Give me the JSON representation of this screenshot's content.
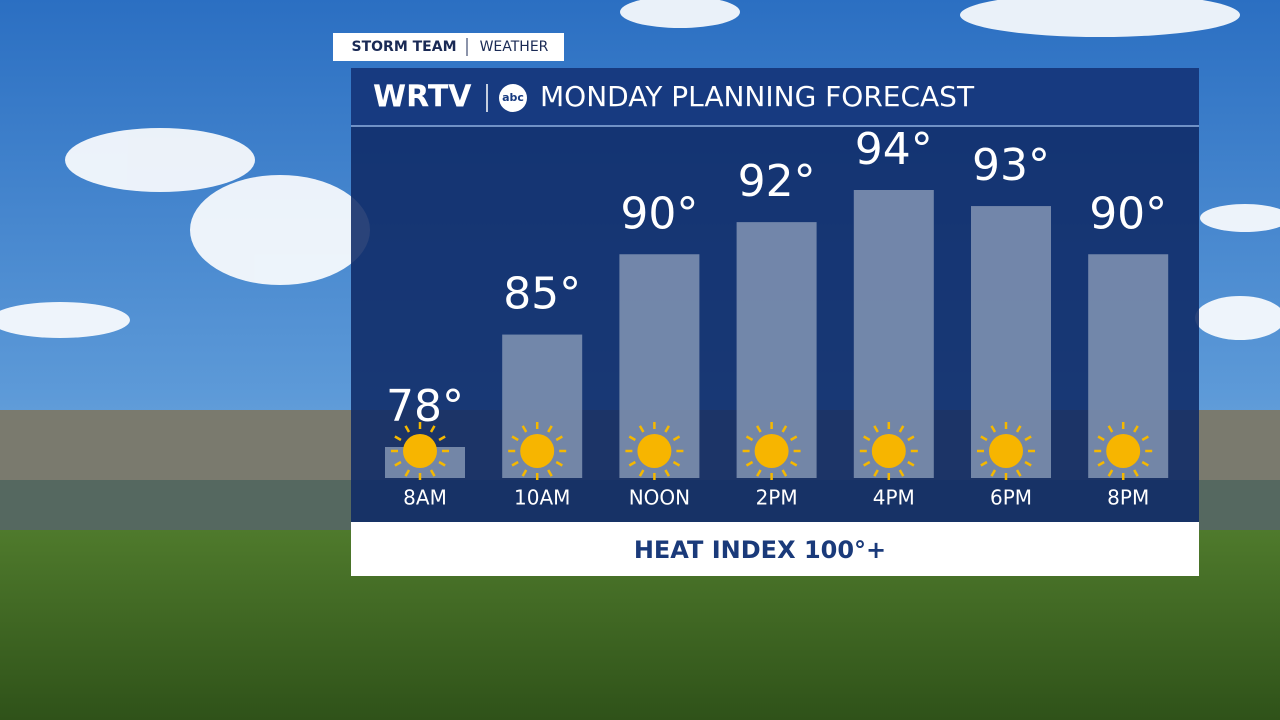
{
  "header": {
    "tab_left": "STORM TEAM",
    "tab_right": "WEATHER",
    "station": "WRTV",
    "network": "abc"
  },
  "chart_data": {
    "type": "bar",
    "title": "MONDAY PLANNING FORECAST",
    "categories": [
      "8AM",
      "10AM",
      "NOON",
      "2PM",
      "4PM",
      "6PM",
      "8PM"
    ],
    "values": [
      78,
      85,
      90,
      92,
      94,
      93,
      90
    ],
    "value_labels": [
      "78°",
      "85°",
      "90°",
      "92°",
      "94°",
      "93°",
      "90°"
    ],
    "color": "#8a9bb8"
  },
  "footer": {
    "text": "HEAT INDEX 100°+"
  }
}
